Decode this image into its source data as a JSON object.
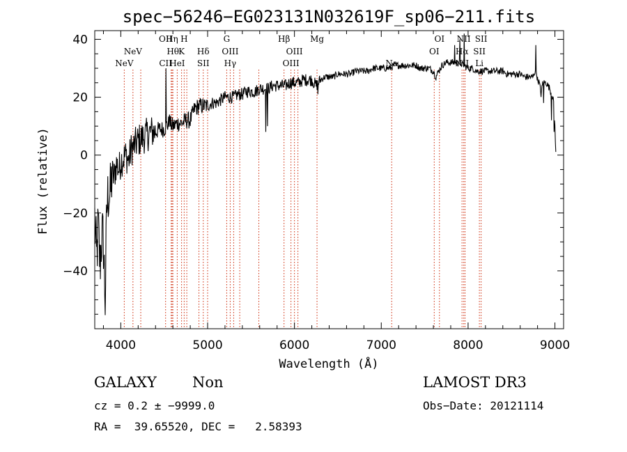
{
  "chart_data": {
    "type": "line",
    "title": "spec−56246−EG023131N032619F_sp06−211.fits",
    "xlabel": "Wavelength (Å)",
    "ylabel": "Flux (relative)",
    "xlim": [
      3700,
      9100
    ],
    "ylim": [
      -60,
      43
    ],
    "x_ticks": [
      4000,
      5000,
      6000,
      7000,
      8000,
      9000
    ],
    "y_ticks": [
      -40,
      -20,
      0,
      20,
      40
    ],
    "y_tick_labels": [
      "−40",
      "−20",
      "0",
      "20",
      "40"
    ],
    "spectrum_anchors": [
      [
        3700,
        -22
      ],
      [
        3710,
        -30
      ],
      [
        3720,
        -36
      ],
      [
        3740,
        -25
      ],
      [
        3760,
        -38
      ],
      [
        3780,
        -28
      ],
      [
        3800,
        -30
      ],
      [
        3820,
        -50
      ],
      [
        3840,
        -18
      ],
      [
        3860,
        -12
      ],
      [
        3880,
        -14
      ],
      [
        3900,
        -6
      ],
      [
        3920,
        -8
      ],
      [
        3950,
        -3
      ],
      [
        3980,
        -5
      ],
      [
        4000,
        -2
      ],
      [
        4030,
        -1
      ],
      [
        4060,
        0
      ],
      [
        4090,
        -2
      ],
      [
        4120,
        2
      ],
      [
        4150,
        3
      ],
      [
        4200,
        5
      ],
      [
        4250,
        6
      ],
      [
        4300,
        7
      ],
      [
        4350,
        8
      ],
      [
        4400,
        8
      ],
      [
        4450,
        9
      ],
      [
        4500,
        9
      ],
      [
        4520,
        10
      ],
      [
        4560,
        11
      ],
      [
        4600,
        10
      ],
      [
        4650,
        11
      ],
      [
        4700,
        11
      ],
      [
        4750,
        12
      ],
      [
        4800,
        12
      ],
      [
        4850,
        16
      ],
      [
        4900,
        17
      ],
      [
        4950,
        17
      ],
      [
        5000,
        17
      ],
      [
        5050,
        18
      ],
      [
        5100,
        18
      ],
      [
        5150,
        19
      ],
      [
        5200,
        20
      ],
      [
        5250,
        20
      ],
      [
        5300,
        20
      ],
      [
        5350,
        21
      ],
      [
        5400,
        21
      ],
      [
        5450,
        22
      ],
      [
        5500,
        22
      ],
      [
        5550,
        22
      ],
      [
        5600,
        23
      ],
      [
        5650,
        23
      ],
      [
        5700,
        23
      ],
      [
        5750,
        24
      ],
      [
        5800,
        24
      ],
      [
        5850,
        24
      ],
      [
        5900,
        24
      ],
      [
        5950,
        25
      ],
      [
        6000,
        25
      ],
      [
        6050,
        25
      ],
      [
        6100,
        26
      ],
      [
        6150,
        26
      ],
      [
        6200,
        26
      ],
      [
        6250,
        24
      ],
      [
        6300,
        26
      ],
      [
        6350,
        27
      ],
      [
        6400,
        27
      ],
      [
        6450,
        27
      ],
      [
        6500,
        28
      ],
      [
        6550,
        28
      ],
      [
        6600,
        28
      ],
      [
        6650,
        28
      ],
      [
        6700,
        29
      ],
      [
        6750,
        29
      ],
      [
        6800,
        29
      ],
      [
        6850,
        29
      ],
      [
        6900,
        30
      ],
      [
        6950,
        30
      ],
      [
        7000,
        30
      ],
      [
        7050,
        30
      ],
      [
        7100,
        30
      ],
      [
        7150,
        31
      ],
      [
        7200,
        31
      ],
      [
        7250,
        31
      ],
      [
        7300,
        31
      ],
      [
        7350,
        31
      ],
      [
        7400,
        31
      ],
      [
        7450,
        30
      ],
      [
        7500,
        30
      ],
      [
        7550,
        30
      ],
      [
        7600,
        29
      ],
      [
        7630,
        27
      ],
      [
        7660,
        29
      ],
      [
        7700,
        31
      ],
      [
        7750,
        32
      ],
      [
        7800,
        32
      ],
      [
        7850,
        32
      ],
      [
        7900,
        32
      ],
      [
        7950,
        31
      ],
      [
        8000,
        30
      ],
      [
        8050,
        30
      ],
      [
        8100,
        29
      ],
      [
        8150,
        29
      ],
      [
        8200,
        29
      ],
      [
        8250,
        29
      ],
      [
        8300,
        29
      ],
      [
        8350,
        29
      ],
      [
        8400,
        29
      ],
      [
        8450,
        28
      ],
      [
        8500,
        28
      ],
      [
        8550,
        28
      ],
      [
        8600,
        28
      ],
      [
        8650,
        27
      ],
      [
        8700,
        27
      ],
      [
        8750,
        27
      ],
      [
        8780,
        30
      ],
      [
        8800,
        26
      ],
      [
        8820,
        25
      ],
      [
        8840,
        21
      ],
      [
        8860,
        25
      ],
      [
        8880,
        25
      ],
      [
        8900,
        25
      ],
      [
        8920,
        24
      ],
      [
        8940,
        23
      ],
      [
        8960,
        21
      ],
      [
        8980,
        20
      ],
      [
        9000,
        10
      ],
      [
        9010,
        1
      ]
    ],
    "spikes": [
      [
        4520,
        30
      ],
      [
        4560,
        14
      ],
      [
        5670,
        8
      ],
      [
        5690,
        10
      ],
      [
        6270,
        21
      ],
      [
        7630,
        26
      ],
      [
        7845,
        38
      ],
      [
        7905,
        40
      ],
      [
        7955,
        42
      ],
      [
        8780,
        38
      ],
      [
        8870,
        18
      ],
      [
        8960,
        12
      ],
      [
        8990,
        8
      ]
    ],
    "emission_lines": [
      {
        "label": "NeV",
        "wavelength": 4040,
        "row": 2
      },
      {
        "label": "NeV",
        "wavelength": 4140,
        "row": 1
      },
      {
        "label": "OII",
        "wavelength": 4516,
        "row": 0
      },
      {
        "label": "CII",
        "wavelength": 4516,
        "row": 2
      },
      {
        "label": "Hη",
        "wavelength": 4590,
        "row": 0
      },
      {
        "label": "Hθ",
        "wavelength": 4600,
        "row": 1
      },
      {
        "label": "HeI",
        "wavelength": 4650,
        "row": 2
      },
      {
        "label": "H",
        "wavelength": 4730,
        "row": 0
      },
      {
        "label": "K",
        "wavelength": 4700,
        "row": 1
      },
      {
        "label": "Hδ",
        "wavelength": 4950,
        "row": 1
      },
      {
        "label": "SII",
        "wavelength": 4950,
        "row": 2
      },
      {
        "label": "G",
        "wavelength": 5220,
        "row": 0
      },
      {
        "label": "OIII",
        "wavelength": 5260,
        "row": 1
      },
      {
        "label": "Hγ",
        "wavelength": 5260,
        "row": 2
      },
      {
        "label": "Hβ",
        "wavelength": 5880,
        "row": 0
      },
      {
        "label": "OIII",
        "wavelength": 6000,
        "row": 1
      },
      {
        "label": "OIII",
        "wavelength": 5960,
        "row": 2
      },
      {
        "label": "Mg",
        "wavelength": 6260,
        "row": 0
      },
      {
        "label": "Na",
        "wavelength": 7120,
        "row": 2
      },
      {
        "label": "OI",
        "wavelength": 7670,
        "row": 0
      },
      {
        "label": "OI",
        "wavelength": 7610,
        "row": 1
      },
      {
        "label": "NII",
        "wavelength": 7950,
        "row": 0
      },
      {
        "label": "Hα",
        "wavelength": 7930,
        "row": 1
      },
      {
        "label": "NII",
        "wavelength": 7930,
        "row": 2
      },
      {
        "label": "SII",
        "wavelength": 8150,
        "row": 0
      },
      {
        "label": "SII",
        "wavelength": 8130,
        "row": 1
      },
      {
        "label": "Li",
        "wavelength": 8130,
        "row": 2
      }
    ],
    "extra_dotted_lines": [
      4230,
      4580,
      4760,
      4900,
      5000,
      5300,
      5370,
      5590,
      6040,
      7930,
      7965
    ]
  },
  "info": {
    "object_class": "GALAXY",
    "subclass": "Non",
    "survey": "LAMOST DR3",
    "redshift": "cz = 0.2 ± −9999.0",
    "obs_date": "Obs−Date: 20121114",
    "coords": "RA =  39.65520, DEC =   2.58393"
  },
  "colors": {
    "line": "#000000",
    "marker": "#cc2200",
    "background": "#ffffff"
  }
}
